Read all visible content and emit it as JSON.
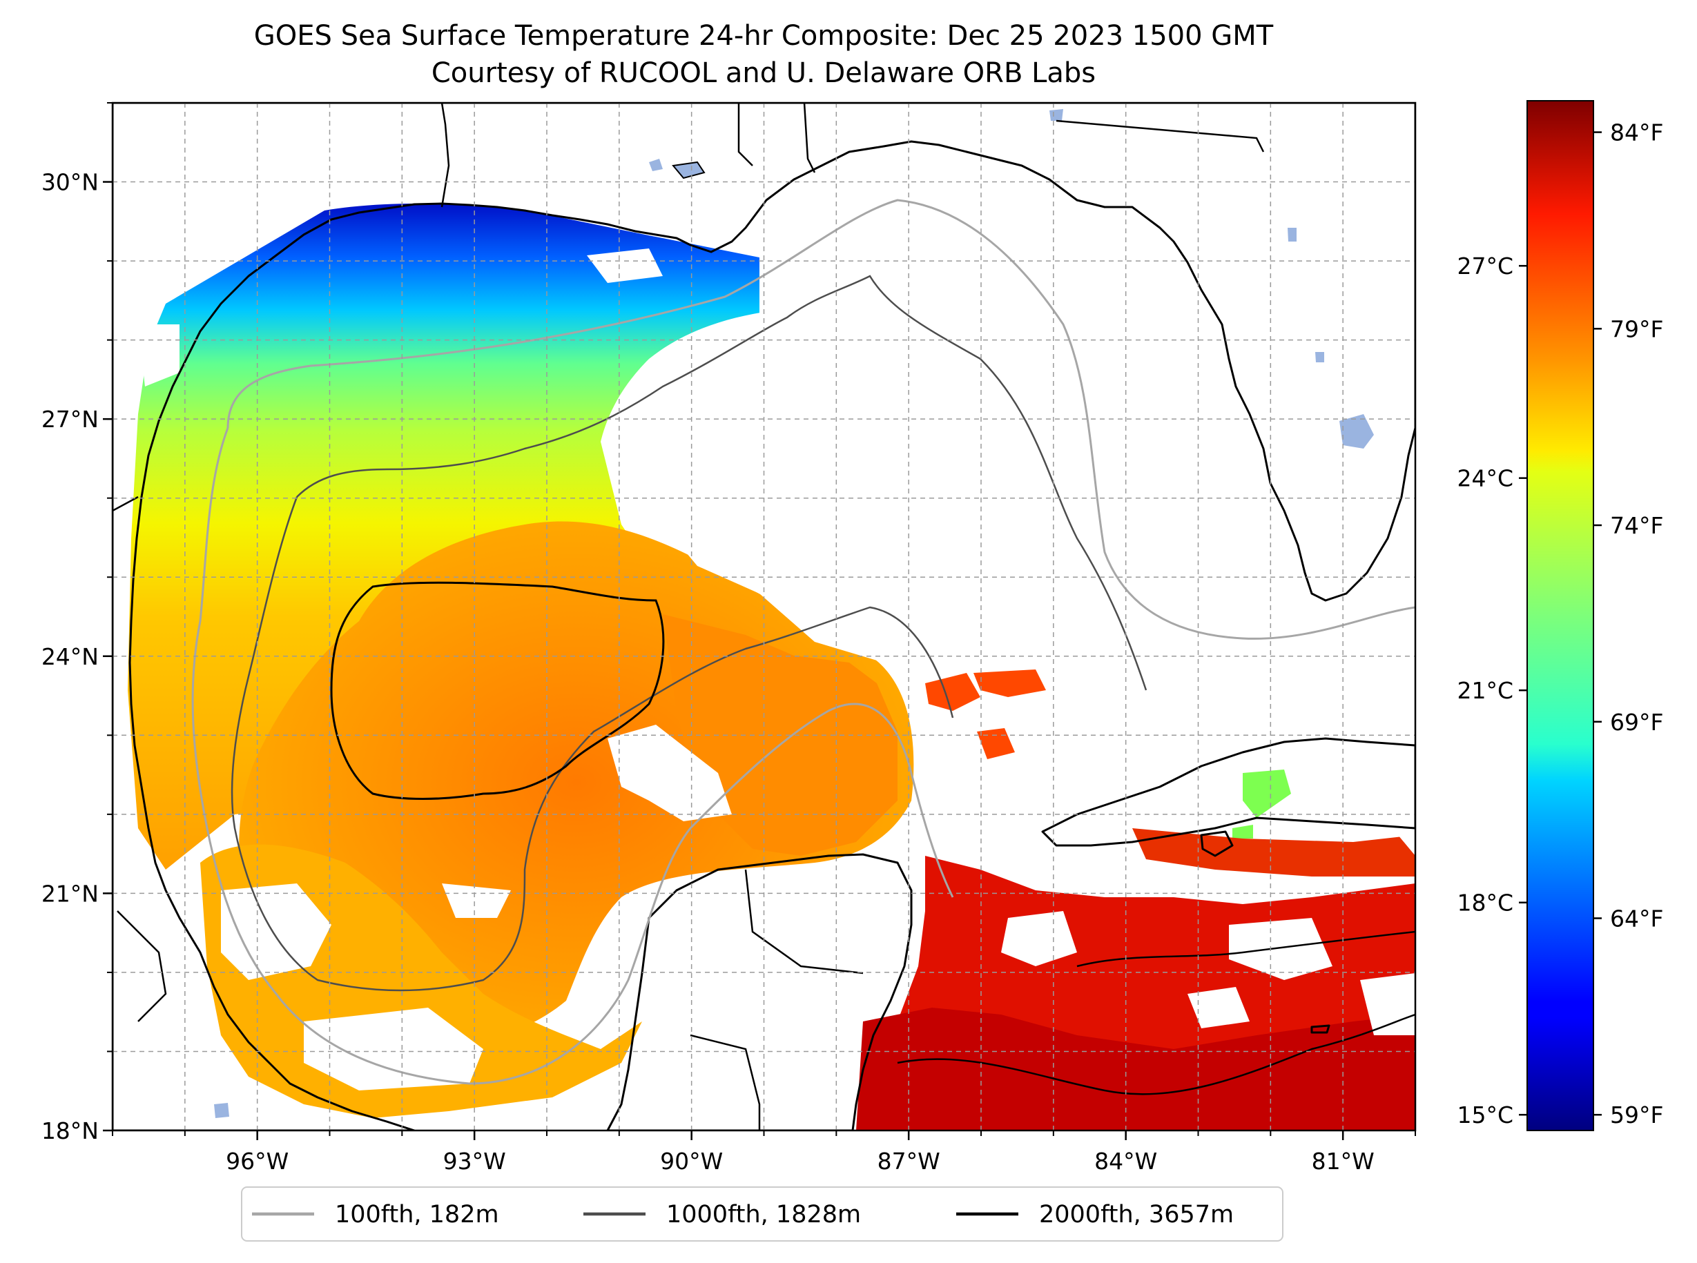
{
  "title": {
    "line1": "GOES Sea Surface Temperature 24-hr Composite: Dec 25 2023 1500 GMT",
    "line2": "Courtesy of RUCOOL and U. Delaware ORB Labs"
  },
  "map": {
    "lon_range": [
      -98,
      -80
    ],
    "lat_range": [
      18,
      31
    ],
    "lat_ticks": [
      {
        "value": 30,
        "label": "30°N"
      },
      {
        "value": 27,
        "label": "27°N"
      },
      {
        "value": 24,
        "label": "24°N"
      },
      {
        "value": 21,
        "label": "21°N"
      },
      {
        "value": 18,
        "label": "18°N"
      }
    ],
    "lon_ticks": [
      {
        "value": -96,
        "label": "96°W"
      },
      {
        "value": -93,
        "label": "93°W"
      },
      {
        "value": -90,
        "label": "90°W"
      },
      {
        "value": -87,
        "label": "87°W"
      },
      {
        "value": -84,
        "label": "84°W"
      },
      {
        "value": -81,
        "label": "81°W"
      }
    ],
    "gridlines": "dashed, every 1 degree",
    "land_color": "#d2b48c",
    "water_color": "#a9c2e8",
    "missing_data_color": "#ffffff",
    "colormap": "jet"
  },
  "colorbar": {
    "range_f": [
      58.6,
      84.8
    ],
    "celsius_ticks": [
      "27°C",
      "24°C",
      "21°C",
      "18°C",
      "15°C"
    ],
    "fahrenheit_ticks": [
      "84°F",
      "79°F",
      "74°F",
      "69°F",
      "64°F",
      "59°F"
    ]
  },
  "legend": {
    "placement": "bottom-center",
    "items": [
      {
        "label": "100fth, 182m",
        "color": "#a6a6a6"
      },
      {
        "label": "1000fth, 1828m",
        "color": "#4d4d4d"
      },
      {
        "label": "2000fth, 3657m",
        "color": "#000000"
      }
    ]
  }
}
